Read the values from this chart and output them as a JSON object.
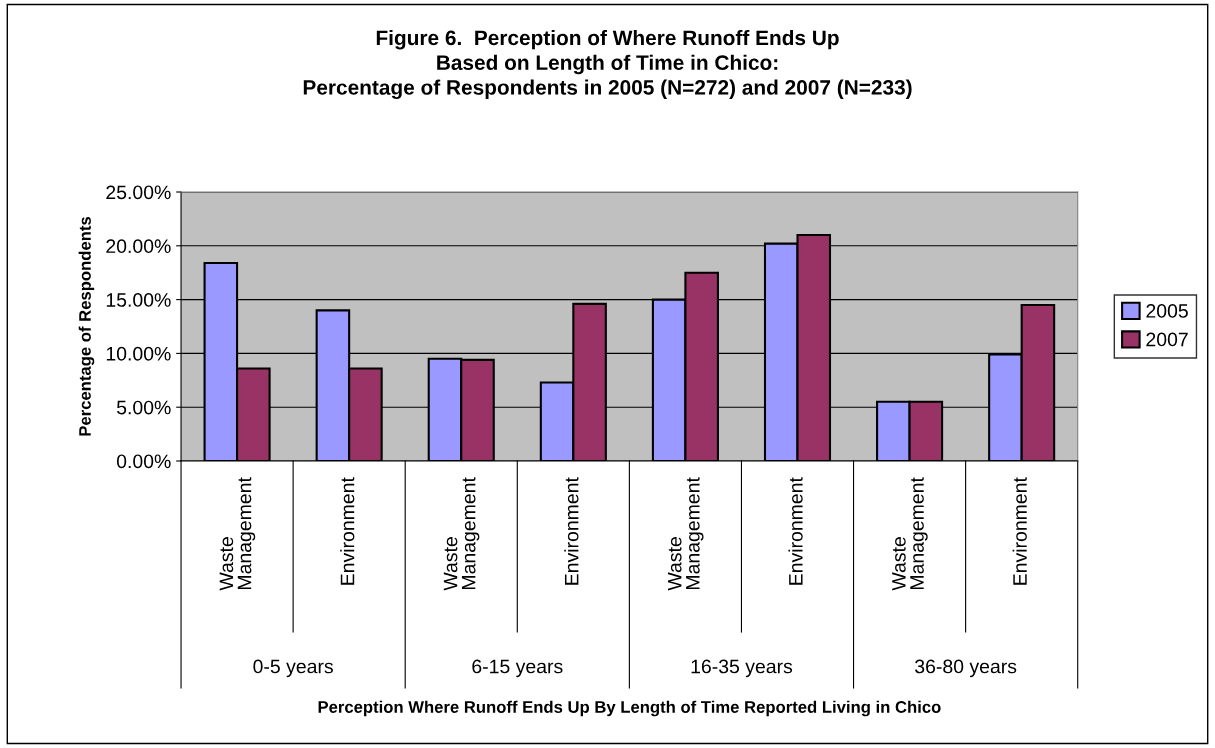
{
  "chart_data": {
    "type": "bar",
    "title": "Figure 6.  Perception of Where Runoff Ends Up\nBased on Length of Time in Chico:\nPercentage of Respondents in 2005 (N=272) and 2007 (N=233)",
    "ylabel": "Percentage of Respondents",
    "categories": [
      "Waste Management",
      "Environment",
      "Waste Management",
      "Environment",
      "Waste Management",
      "Environment",
      "Waste Management",
      "Environment"
    ],
    "annotations": [
      "0-5 years",
      "6-15 years",
      "16-35 years",
      "36-80 years",
      "Perception Where Runoff Ends Up By Length of Time Reported Living in Chico"
    ],
    "series": [
      {
        "name": "2005",
        "color": "#9999ff",
        "values": [
          18.4,
          14.0,
          9.5,
          7.3,
          15.0,
          20.2,
          5.5,
          9.9
        ]
      },
      {
        "name": "2007",
        "color": "#993366",
        "values": [
          8.6,
          8.6,
          9.4,
          14.6,
          17.5,
          21.0,
          5.5,
          14.5
        ]
      }
    ],
    "ylim": [
      0,
      25
    ],
    "yticks": [
      {
        "value": 0,
        "label": "0.00%"
      },
      {
        "value": 5,
        "label": "5.00%"
      },
      {
        "value": 10,
        "label": "10.00%"
      },
      {
        "value": 15,
        "label": "15.00%"
      },
      {
        "value": 20,
        "label": "20.00%"
      },
      {
        "value": 25,
        "label": "25.00%"
      }
    ],
    "grid": "y",
    "legend": "right"
  }
}
